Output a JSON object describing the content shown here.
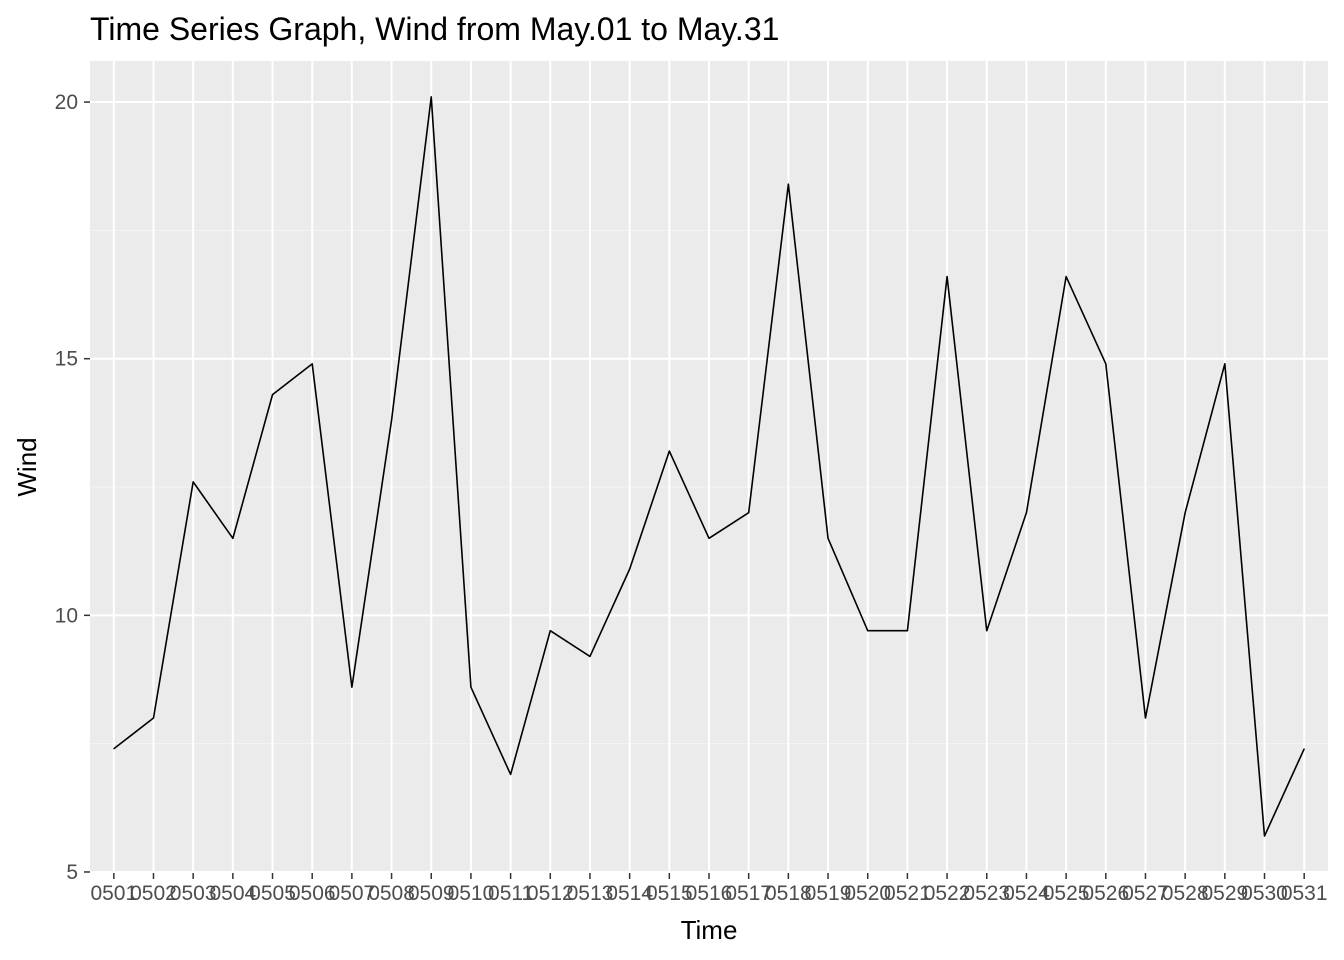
{
  "chart_data": {
    "type": "line",
    "title": "Time Series Graph, Wind from May.01 to May.31",
    "xlabel": "Time",
    "ylabel": "Wind",
    "categories": [
      "0501",
      "0502",
      "0503",
      "0504",
      "0505",
      "0506",
      "0507",
      "0508",
      "0509",
      "0510",
      "0511",
      "0512",
      "0513",
      "0514",
      "0515",
      "0516",
      "0517",
      "0518",
      "0519",
      "0520",
      "0521",
      "0522",
      "0523",
      "0524",
      "0525",
      "0526",
      "0527",
      "0528",
      "0529",
      "0530",
      "0531"
    ],
    "series": [
      {
        "values": [
          7.4,
          8.0,
          12.6,
          11.5,
          14.3,
          14.9,
          8.6,
          13.8,
          20.1,
          8.6,
          6.9,
          9.7,
          9.2,
          10.9,
          13.2,
          11.5,
          12.0,
          18.4,
          11.5,
          9.7,
          9.7,
          16.6,
          9.7,
          12.0,
          16.6,
          14.9,
          8.0,
          12.0,
          14.9,
          5.7,
          7.4
        ]
      }
    ],
    "ylim": [
      4.98,
      20.8
    ],
    "yticks": [
      5,
      10,
      15,
      20
    ],
    "grid": true,
    "legend": "none",
    "colors": {
      "panel_background": "#ebebeb",
      "grid_major": "#ffffff",
      "grid_minor": "#f5f5f5",
      "line": "#000000",
      "tick_text": "#4d4d4d",
      "tick_mark": "#333333"
    }
  }
}
